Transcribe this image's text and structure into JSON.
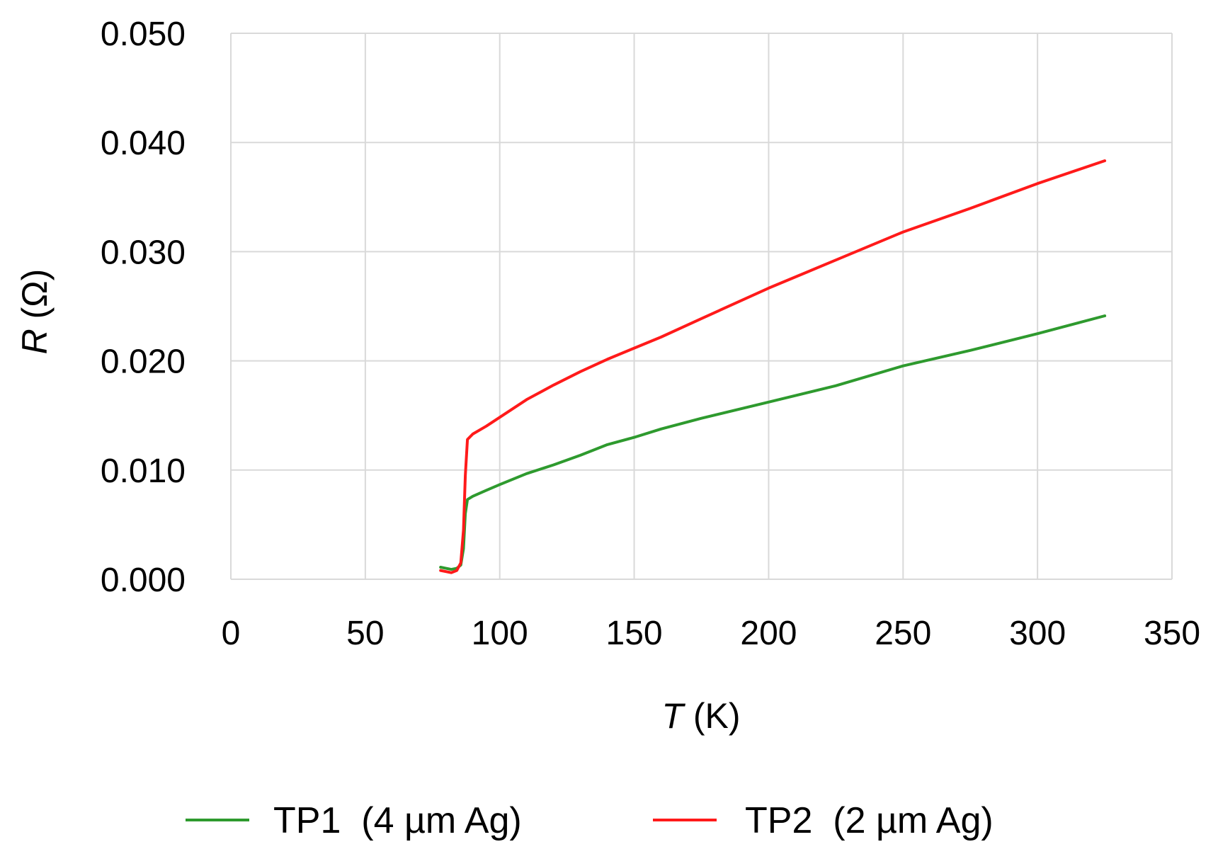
{
  "chart_data": {
    "type": "line",
    "xlabel": {
      "var": "T",
      "unit": " (K)"
    },
    "ylabel": {
      "var": "R",
      "unit": " (Ω)"
    },
    "xlim": [
      0,
      350
    ],
    "ylim": [
      0,
      0.05
    ],
    "x_ticks": [
      "0",
      "50",
      "100",
      "150",
      "200",
      "250",
      "300",
      "350"
    ],
    "y_ticks": [
      "0.000",
      "0.010",
      "0.020",
      "0.030",
      "0.040",
      "0.050"
    ],
    "grid": true,
    "legend_position": "bottom",
    "series": [
      {
        "name": "TP1  (4 µm Ag)",
        "color": "#2e9a2e",
        "points": [
          [
            78,
            0.0011
          ],
          [
            80,
            0.001
          ],
          [
            82,
            0.0009
          ],
          [
            84,
            0.001
          ],
          [
            85.5,
            0.0013
          ],
          [
            86.5,
            0.0028
          ],
          [
            87.2,
            0.006
          ],
          [
            88,
            0.0073
          ],
          [
            90,
            0.0076
          ],
          [
            95,
            0.0081
          ],
          [
            100,
            0.0086
          ],
          [
            110,
            0.0096
          ],
          [
            120,
            0.0104
          ],
          [
            130,
            0.0113
          ],
          [
            140,
            0.0123
          ],
          [
            150,
            0.013
          ],
          [
            160,
            0.0138
          ],
          [
            175,
            0.0148
          ],
          [
            200,
            0.0163
          ],
          [
            225,
            0.0178
          ],
          [
            250,
            0.0196
          ],
          [
            275,
            0.021
          ],
          [
            300,
            0.0225
          ],
          [
            325,
            0.0241
          ]
        ]
      },
      {
        "name": "TP2  (2 µm Ag)",
        "color": "#ff1a1a",
        "points": [
          [
            78,
            0.0008
          ],
          [
            80,
            0.0007
          ],
          [
            82,
            0.0006
          ],
          [
            84,
            0.0008
          ],
          [
            85.5,
            0.0015
          ],
          [
            86.5,
            0.0045
          ],
          [
            87.2,
            0.0095
          ],
          [
            88,
            0.0128
          ],
          [
            90,
            0.0133
          ],
          [
            95,
            0.0141
          ],
          [
            100,
            0.0149
          ],
          [
            110,
            0.0165
          ],
          [
            120,
            0.0178
          ],
          [
            130,
            0.019
          ],
          [
            140,
            0.0201
          ],
          [
            150,
            0.0211
          ],
          [
            160,
            0.0221
          ],
          [
            175,
            0.0238
          ],
          [
            200,
            0.0266
          ],
          [
            225,
            0.0292
          ],
          [
            250,
            0.0318
          ],
          [
            275,
            0.034
          ],
          [
            300,
            0.0363
          ],
          [
            325,
            0.0384
          ]
        ]
      }
    ]
  }
}
